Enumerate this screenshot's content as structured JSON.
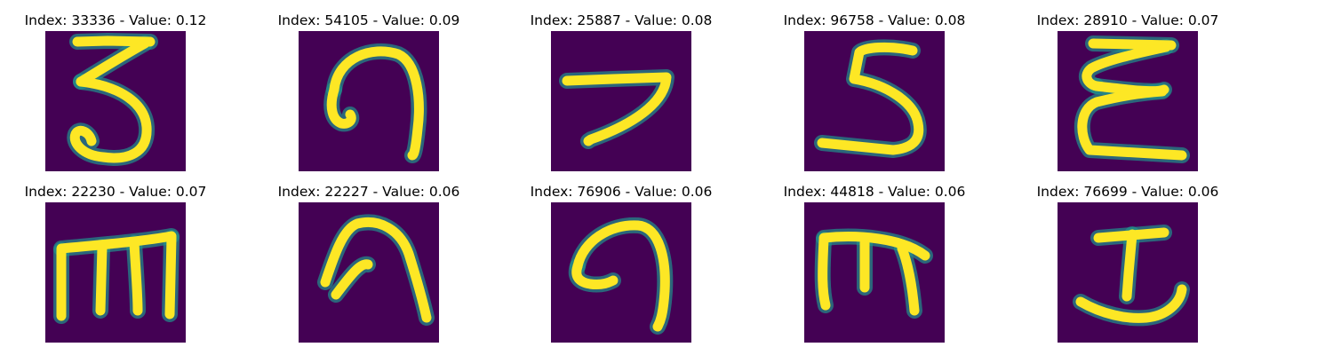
{
  "colors": {
    "background": "#440154",
    "stroke": "#fde725"
  },
  "chart_data": {
    "type": "image-grid",
    "rows": 2,
    "cols": 5,
    "items": [
      {
        "title": "Index: 33336 - Value: 0.12",
        "index": 33336,
        "value": 0.12,
        "glyph": "3"
      },
      {
        "title": "Index: 54105 - Value: 0.09",
        "index": 54105,
        "value": 0.09,
        "glyph": "hook-a"
      },
      {
        "title": "Index: 25887 - Value: 0.08",
        "index": 25887,
        "value": 0.08,
        "glyph": "hook-b"
      },
      {
        "title": "Index: 96758 - Value: 0.08",
        "index": 96758,
        "value": 0.08,
        "glyph": "5"
      },
      {
        "title": "Index: 28910 - Value: 0.07",
        "index": 28910,
        "value": 0.07,
        "glyph": "epsilon"
      },
      {
        "title": "Index: 22230 - Value: 0.07",
        "index": 22230,
        "value": 0.07,
        "glyph": "m-a"
      },
      {
        "title": "Index: 22227 - Value: 0.06",
        "index": 22227,
        "value": 0.06,
        "glyph": "arch"
      },
      {
        "title": "Index: 76906 - Value: 0.06",
        "index": 76906,
        "value": 0.06,
        "glyph": "hook-c"
      },
      {
        "title": "Index: 44818 - Value: 0.06",
        "index": 44818,
        "value": 0.06,
        "glyph": "m-b"
      },
      {
        "title": "Index: 76699 - Value: 0.06",
        "index": 76699,
        "value": 0.06,
        "glyph": "anchor"
      }
    ]
  }
}
